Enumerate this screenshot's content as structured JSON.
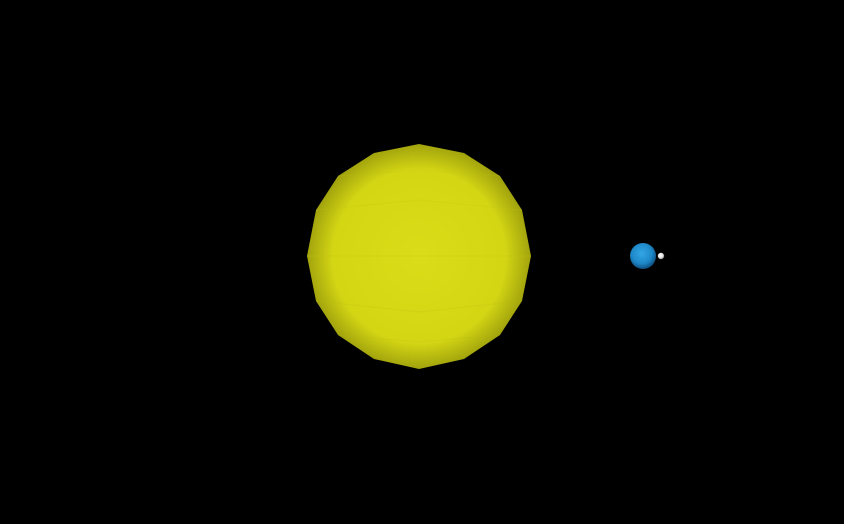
{
  "scene": {
    "background_color": "#000000",
    "sun": {
      "color": "#d4d614",
      "highlight_color": "#dadc18",
      "shade_color": "#8a8c0a"
    },
    "earth": {
      "color": "#1e88c8",
      "highlight_color": "#34a6e6",
      "shade_color": "#0d4f80"
    },
    "moon": {
      "color": "#e6e6e6",
      "shade_color": "#8e8e8e"
    }
  }
}
